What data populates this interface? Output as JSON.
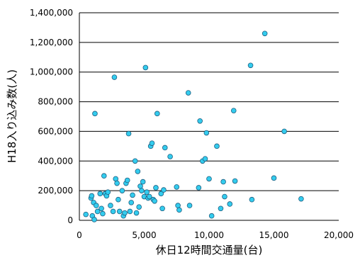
{
  "chart_data": {
    "type": "scatter",
    "xlabel": "休日12時間交通量(台)",
    "ylabel": "H18入り込み数(人)",
    "xlim": [
      0,
      20000
    ],
    "ylim": [
      0,
      1400000
    ],
    "x_ticks": [
      "0",
      "5,000",
      "10,000",
      "15,000",
      "20,000"
    ],
    "y_ticks": [
      "0",
      "200,000",
      "400,000",
      "600,000",
      "800,000",
      "1,000,000",
      "1,200,000",
      "1,400,000"
    ],
    "grid": "horizontal",
    "marker_color": "#33CCEE",
    "points": [
      [
        500,
        40000
      ],
      [
        900,
        150000
      ],
      [
        950,
        165000
      ],
      [
        1000,
        30000
      ],
      [
        1100,
        120000
      ],
      [
        1150,
        5000
      ],
      [
        1200,
        720000
      ],
      [
        1300,
        100000
      ],
      [
        1400,
        60000
      ],
      [
        1600,
        180000
      ],
      [
        1700,
        80000
      ],
      [
        1800,
        45000
      ],
      [
        1900,
        300000
      ],
      [
        2000,
        180000
      ],
      [
        2100,
        165000
      ],
      [
        2200,
        190000
      ],
      [
        2400,
        100000
      ],
      [
        2600,
        60000
      ],
      [
        2700,
        965000
      ],
      [
        2800,
        280000
      ],
      [
        2900,
        250000
      ],
      [
        3000,
        140000
      ],
      [
        3100,
        60000
      ],
      [
        3300,
        200000
      ],
      [
        3400,
        30000
      ],
      [
        3500,
        50000
      ],
      [
        3600,
        250000
      ],
      [
        3700,
        270000
      ],
      [
        3800,
        585000
      ],
      [
        3900,
        60000
      ],
      [
        4000,
        120000
      ],
      [
        4100,
        170000
      ],
      [
        4300,
        400000
      ],
      [
        4400,
        50000
      ],
      [
        4500,
        330000
      ],
      [
        4600,
        90000
      ],
      [
        4700,
        230000
      ],
      [
        4800,
        200000
      ],
      [
        4900,
        260000
      ],
      [
        5000,
        160000
      ],
      [
        5100,
        1030000
      ],
      [
        5200,
        190000
      ],
      [
        5300,
        150000
      ],
      [
        5400,
        160000
      ],
      [
        5500,
        500000
      ],
      [
        5600,
        520000
      ],
      [
        5700,
        140000
      ],
      [
        5800,
        130000
      ],
      [
        5900,
        220000
      ],
      [
        6000,
        720000
      ],
      [
        6300,
        180000
      ],
      [
        6400,
        80000
      ],
      [
        6500,
        205000
      ],
      [
        6600,
        490000
      ],
      [
        7000,
        430000
      ],
      [
        7500,
        225000
      ],
      [
        7600,
        100000
      ],
      [
        7700,
        70000
      ],
      [
        8400,
        860000
      ],
      [
        8500,
        100000
      ],
      [
        9200,
        220000
      ],
      [
        9300,
        670000
      ],
      [
        9500,
        400000
      ],
      [
        9700,
        415000
      ],
      [
        9800,
        590000
      ],
      [
        10000,
        280000
      ],
      [
        10200,
        30000
      ],
      [
        10600,
        500000
      ],
      [
        10900,
        80000
      ],
      [
        11100,
        260000
      ],
      [
        11200,
        160000
      ],
      [
        11600,
        110000
      ],
      [
        11900,
        740000
      ],
      [
        12000,
        265000
      ],
      [
        13200,
        1045000
      ],
      [
        13300,
        140000
      ],
      [
        14300,
        1260000
      ],
      [
        15000,
        285000
      ],
      [
        15800,
        600000
      ],
      [
        17100,
        145000
      ]
    ]
  }
}
